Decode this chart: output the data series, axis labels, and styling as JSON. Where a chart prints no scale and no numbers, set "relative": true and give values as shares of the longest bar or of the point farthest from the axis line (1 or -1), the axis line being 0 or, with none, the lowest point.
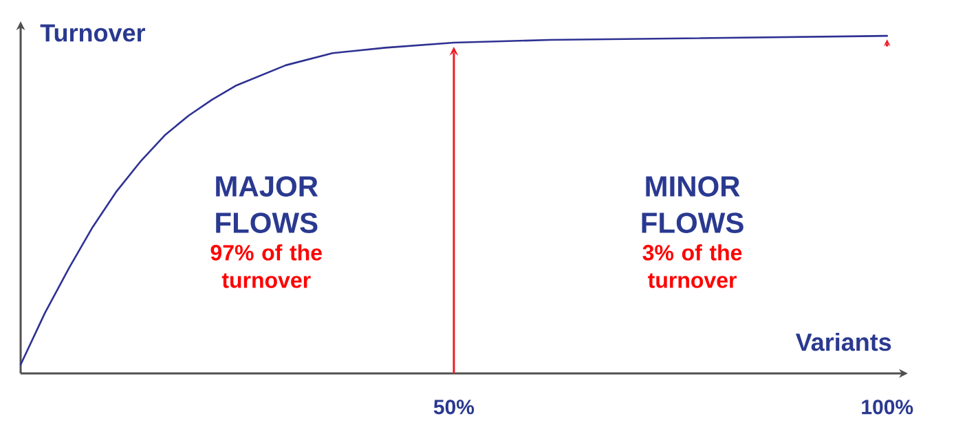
{
  "chart_data": {
    "type": "line",
    "xlabel": "Variants",
    "ylabel": "Turnover",
    "x": [
      0,
      2.8,
      5.6,
      8.3,
      11.0,
      13.9,
      16.7,
      19.4,
      22.1,
      24.8,
      30.6,
      36.0,
      42.1,
      50,
      61.1,
      100
    ],
    "series": [
      {
        "color": "#2e3192",
        "values": [
          0.026,
          0.179,
          0.313,
          0.433,
          0.537,
          0.63,
          0.707,
          0.764,
          0.811,
          0.852,
          0.913,
          0.949,
          0.965,
          0.98,
          0.988,
          1
        ]
      }
    ],
    "relative": true,
    "xlim": [
      0,
      102
    ],
    "xticks": [
      {
        "value": 50,
        "label": "50%"
      },
      {
        "value": 100,
        "label": "100%"
      }
    ],
    "line_style": "solid",
    "ref_lines": [
      {
        "axis": "x",
        "value": 50,
        "color": "#ee1c25"
      }
    ],
    "annotations": [
      "MAJOR FLOWS",
      "97% of the turnover",
      "MINOR FLOWS",
      "3% of the turnover"
    ]
  }
}
